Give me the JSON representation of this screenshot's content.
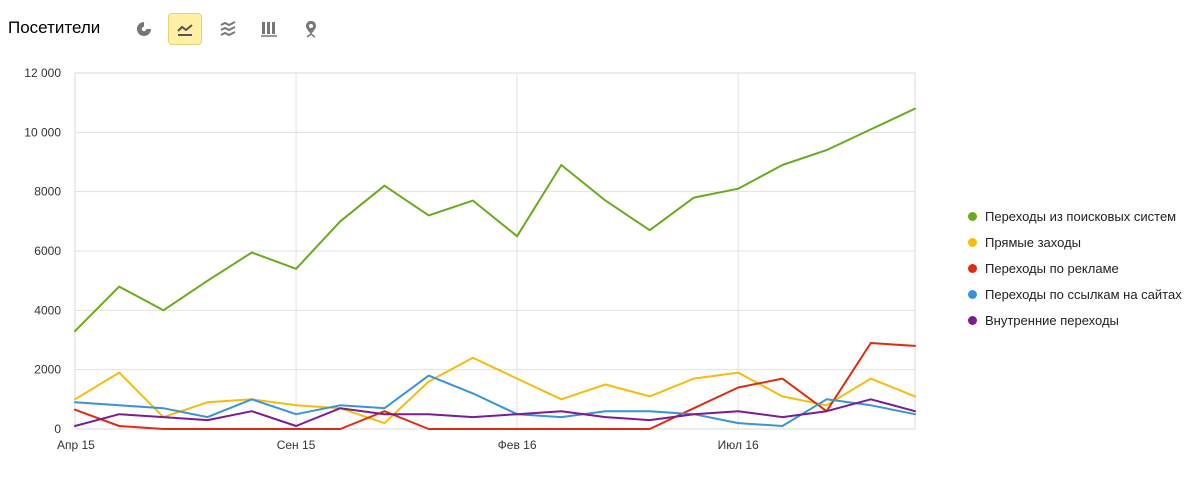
{
  "header": {
    "title": "Посетители",
    "view_buttons": [
      {
        "icon": "pie-chart-icon",
        "active": false
      },
      {
        "icon": "line-chart-icon",
        "active": true
      },
      {
        "icon": "area-chart-icon",
        "active": false
      },
      {
        "icon": "bar-chart-icon",
        "active": false
      },
      {
        "icon": "map-pin-icon",
        "active": false
      }
    ]
  },
  "chart_data": {
    "type": "line",
    "x": [
      "2015-04",
      "2015-05",
      "2015-06",
      "2015-07",
      "2015-08",
      "2015-09",
      "2015-10",
      "2015-11",
      "2015-12",
      "2016-01",
      "2016-02",
      "2016-03",
      "2016-04",
      "2016-05",
      "2016-06",
      "2016-07",
      "2016-08",
      "2016-09",
      "2016-10",
      "2016-11"
    ],
    "x_ticks": [
      {
        "x": "2015-04",
        "label": "Апр 15"
      },
      {
        "x": "2015-09",
        "label": "Сен 15"
      },
      {
        "x": "2016-02",
        "label": "Фев 16"
      },
      {
        "x": "2016-07",
        "label": "Июл 16"
      }
    ],
    "ylim": [
      0,
      12000
    ],
    "y_ticks": [
      {
        "value": 0,
        "label": "0"
      },
      {
        "value": 2000,
        "label": "2000"
      },
      {
        "value": 4000,
        "label": "4000"
      },
      {
        "value": 6000,
        "label": "6000"
      },
      {
        "value": 8000,
        "label": "8000"
      },
      {
        "value": 10000,
        "label": "10 000"
      },
      {
        "value": 12000,
        "label": "12 000"
      }
    ],
    "grid": true,
    "legend_position": "right",
    "series": [
      {
        "name": "Переходы из поисковых систем",
        "color": "#6aaa1e",
        "values": [
          3300,
          4800,
          4000,
          5000,
          5950,
          5400,
          7000,
          8200,
          7200,
          7700,
          6500,
          8900,
          7700,
          6700,
          7800,
          8100,
          8900,
          9400,
          10100,
          10800
        ]
      },
      {
        "name": "Прямые заходы",
        "color": "#f5bc0d",
        "values": [
          1000,
          1900,
          400,
          900,
          1000,
          800,
          700,
          200,
          1600,
          2400,
          1700,
          1000,
          1500,
          1100,
          1700,
          1900,
          1100,
          800,
          1700,
          1100
        ]
      },
      {
        "name": "Переходы по рекламе",
        "color": "#e02b10",
        "values": [
          650,
          100,
          0,
          0,
          0,
          0,
          0,
          600,
          0,
          0,
          0,
          0,
          0,
          0,
          700,
          1400,
          1700,
          600,
          2900,
          2800
        ]
      },
      {
        "name": "Переходы по ссылкам на сайтах",
        "color": "#3a93d8",
        "values": [
          900,
          800,
          700,
          400,
          1000,
          500,
          800,
          700,
          1800,
          1200,
          500,
          400,
          600,
          600,
          500,
          200,
          100,
          1000,
          800,
          500
        ]
      },
      {
        "name": "Внутренние переходы",
        "color": "#7b1c92",
        "values": [
          100,
          500,
          400,
          300,
          600,
          100,
          700,
          500,
          500,
          400,
          500,
          600,
          400,
          300,
          500,
          600,
          400,
          600,
          1000,
          600
        ]
      }
    ]
  }
}
